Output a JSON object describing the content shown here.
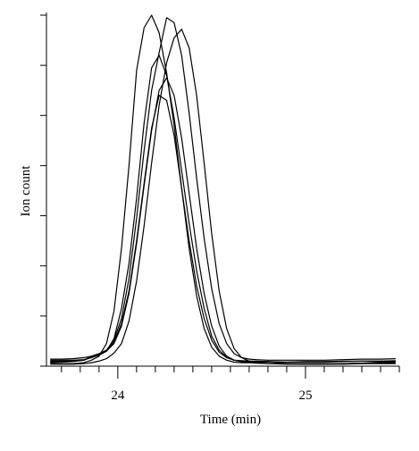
{
  "chart_data": {
    "type": "line",
    "title": "",
    "xlabel": "Time (min)",
    "ylabel": "Ion count",
    "xlim": [
      23.62,
      25.5
    ],
    "ylim": [
      0,
      7
    ],
    "x_ticks": [
      {
        "value": 24,
        "label": "24"
      },
      {
        "value": 25,
        "label": "25"
      }
    ],
    "x_minor_step": 0.1,
    "y_ticks": [
      0,
      1,
      2,
      3,
      4,
      5,
      6,
      7
    ],
    "grid": false,
    "legend": "none",
    "line_color": "#000000",
    "series": [
      {
        "x": [
          23.64,
          23.7,
          23.76,
          23.82,
          23.86,
          23.9,
          23.94,
          23.98,
          24.02,
          24.06,
          24.1,
          24.14,
          24.18,
          24.22,
          24.26,
          24.3,
          24.34,
          24.38,
          24.42,
          24.46,
          24.5,
          24.54,
          24.58,
          24.62,
          24.66,
          24.7,
          24.74,
          24.8,
          24.9,
          25.0,
          25.1,
          25.2,
          25.3,
          25.4,
          25.48
        ],
        "y": [
          0.06,
          0.05,
          0.05,
          0.07,
          0.12,
          0.2,
          0.45,
          1.1,
          2.35,
          4.0,
          5.9,
          6.75,
          7.0,
          6.65,
          5.85,
          4.8,
          3.55,
          2.35,
          1.4,
          0.75,
          0.38,
          0.2,
          0.12,
          0.08,
          0.07,
          0.07,
          0.06,
          0.05,
          0.05,
          0.05,
          0.05,
          0.05,
          0.06,
          0.06,
          0.07
        ]
      },
      {
        "x": [
          23.64,
          23.7,
          23.76,
          23.82,
          23.86,
          23.9,
          23.94,
          23.98,
          24.02,
          24.06,
          24.1,
          24.14,
          24.18,
          24.22,
          24.26,
          24.3,
          24.34,
          24.38,
          24.42,
          24.46,
          24.5,
          24.54,
          24.58,
          24.62,
          24.66,
          24.7,
          24.74,
          24.8,
          24.9,
          25.0,
          25.1,
          25.2,
          25.3,
          25.4,
          25.48
        ],
        "y": [
          0.1,
          0.1,
          0.1,
          0.12,
          0.2,
          0.22,
          0.3,
          0.55,
          1.15,
          2.05,
          3.35,
          4.85,
          5.95,
          6.2,
          5.8,
          4.95,
          3.9,
          2.85,
          1.9,
          1.15,
          0.6,
          0.32,
          0.18,
          0.12,
          0.1,
          0.1,
          0.09,
          0.09,
          0.08,
          0.08,
          0.08,
          0.09,
          0.1,
          0.1,
          0.11
        ]
      },
      {
        "x": [
          23.64,
          23.7,
          23.76,
          23.82,
          23.86,
          23.9,
          23.94,
          23.98,
          24.02,
          24.06,
          24.1,
          24.14,
          24.18,
          24.22,
          24.26,
          24.3,
          24.34,
          24.38,
          24.42,
          24.46,
          24.5,
          24.54,
          24.58,
          24.62,
          24.66,
          24.7,
          24.74,
          24.8,
          24.9,
          25.0,
          25.1,
          25.2,
          25.3,
          25.4,
          25.48
        ],
        "y": [
          0.14,
          0.14,
          0.15,
          0.17,
          0.2,
          0.25,
          0.32,
          0.52,
          0.95,
          1.75,
          2.95,
          4.3,
          5.5,
          6.25,
          6.95,
          6.85,
          6.2,
          5.05,
          3.75,
          2.55,
          1.55,
          0.85,
          0.45,
          0.25,
          0.17,
          0.14,
          0.13,
          0.12,
          0.12,
          0.12,
          0.12,
          0.13,
          0.14,
          0.14,
          0.15
        ]
      },
      {
        "x": [
          23.64,
          23.7,
          23.76,
          23.82,
          23.86,
          23.9,
          23.94,
          23.98,
          24.02,
          24.06,
          24.1,
          24.14,
          24.18,
          24.22,
          24.26,
          24.3,
          24.34,
          24.38,
          24.42,
          24.46,
          24.5,
          24.54,
          24.58,
          24.62,
          24.66,
          24.7,
          24.74,
          24.8,
          24.9,
          25.0,
          25.1,
          25.2,
          25.3,
          25.4,
          25.48
        ],
        "y": [
          0.04,
          0.04,
          0.04,
          0.05,
          0.07,
          0.1,
          0.15,
          0.26,
          0.45,
          0.9,
          1.7,
          2.8,
          4.05,
          5.2,
          6.05,
          6.55,
          6.72,
          6.35,
          5.4,
          4.05,
          2.65,
          1.5,
          0.75,
          0.35,
          0.17,
          0.1,
          0.07,
          0.05,
          0.04,
          0.04,
          0.04,
          0.04,
          0.05,
          0.05,
          0.05
        ]
      },
      {
        "x": [
          23.64,
          23.7,
          23.76,
          23.82,
          23.86,
          23.9,
          23.94,
          23.98,
          24.02,
          24.06,
          24.1,
          24.14,
          24.18,
          24.22,
          24.26,
          24.3,
          24.34,
          24.38,
          24.42,
          24.46,
          24.5,
          24.54,
          24.58,
          24.62,
          24.66,
          24.7,
          24.74,
          24.8,
          24.9,
          25.0,
          25.1,
          25.2,
          25.3,
          25.4,
          25.48
        ],
        "y": [
          0.08,
          0.08,
          0.09,
          0.12,
          0.18,
          0.24,
          0.3,
          0.45,
          0.8,
          1.45,
          2.45,
          3.6,
          4.7,
          5.5,
          5.75,
          5.4,
          4.55,
          3.45,
          2.35,
          1.45,
          0.8,
          0.4,
          0.2,
          0.12,
          0.09,
          0.08,
          0.08,
          0.08,
          0.08,
          0.09,
          0.09,
          0.1,
          0.1,
          0.1,
          0.1
        ]
      },
      {
        "x": [
          23.64,
          23.7,
          23.76,
          23.82,
          23.86,
          23.9,
          23.94,
          23.98,
          24.02,
          24.06,
          24.1,
          24.14,
          24.18,
          24.22,
          24.26,
          24.3,
          24.34,
          24.38,
          24.42,
          24.46,
          24.5,
          24.54,
          24.58,
          24.62,
          24.66,
          24.7,
          24.74,
          24.8,
          24.9,
          25.0,
          25.1,
          25.2,
          25.3,
          25.4,
          25.48
        ],
        "y": [
          0.12,
          0.12,
          0.12,
          0.13,
          0.17,
          0.22,
          0.3,
          0.48,
          0.85,
          1.5,
          2.5,
          3.65,
          4.75,
          5.4,
          5.3,
          4.6,
          3.55,
          2.5,
          1.6,
          0.95,
          0.52,
          0.28,
          0.17,
          0.12,
          0.11,
          0.1,
          0.1,
          0.09,
          0.05,
          0.04,
          0.04,
          0.05,
          0.06,
          0.08,
          0.08
        ]
      }
    ]
  }
}
